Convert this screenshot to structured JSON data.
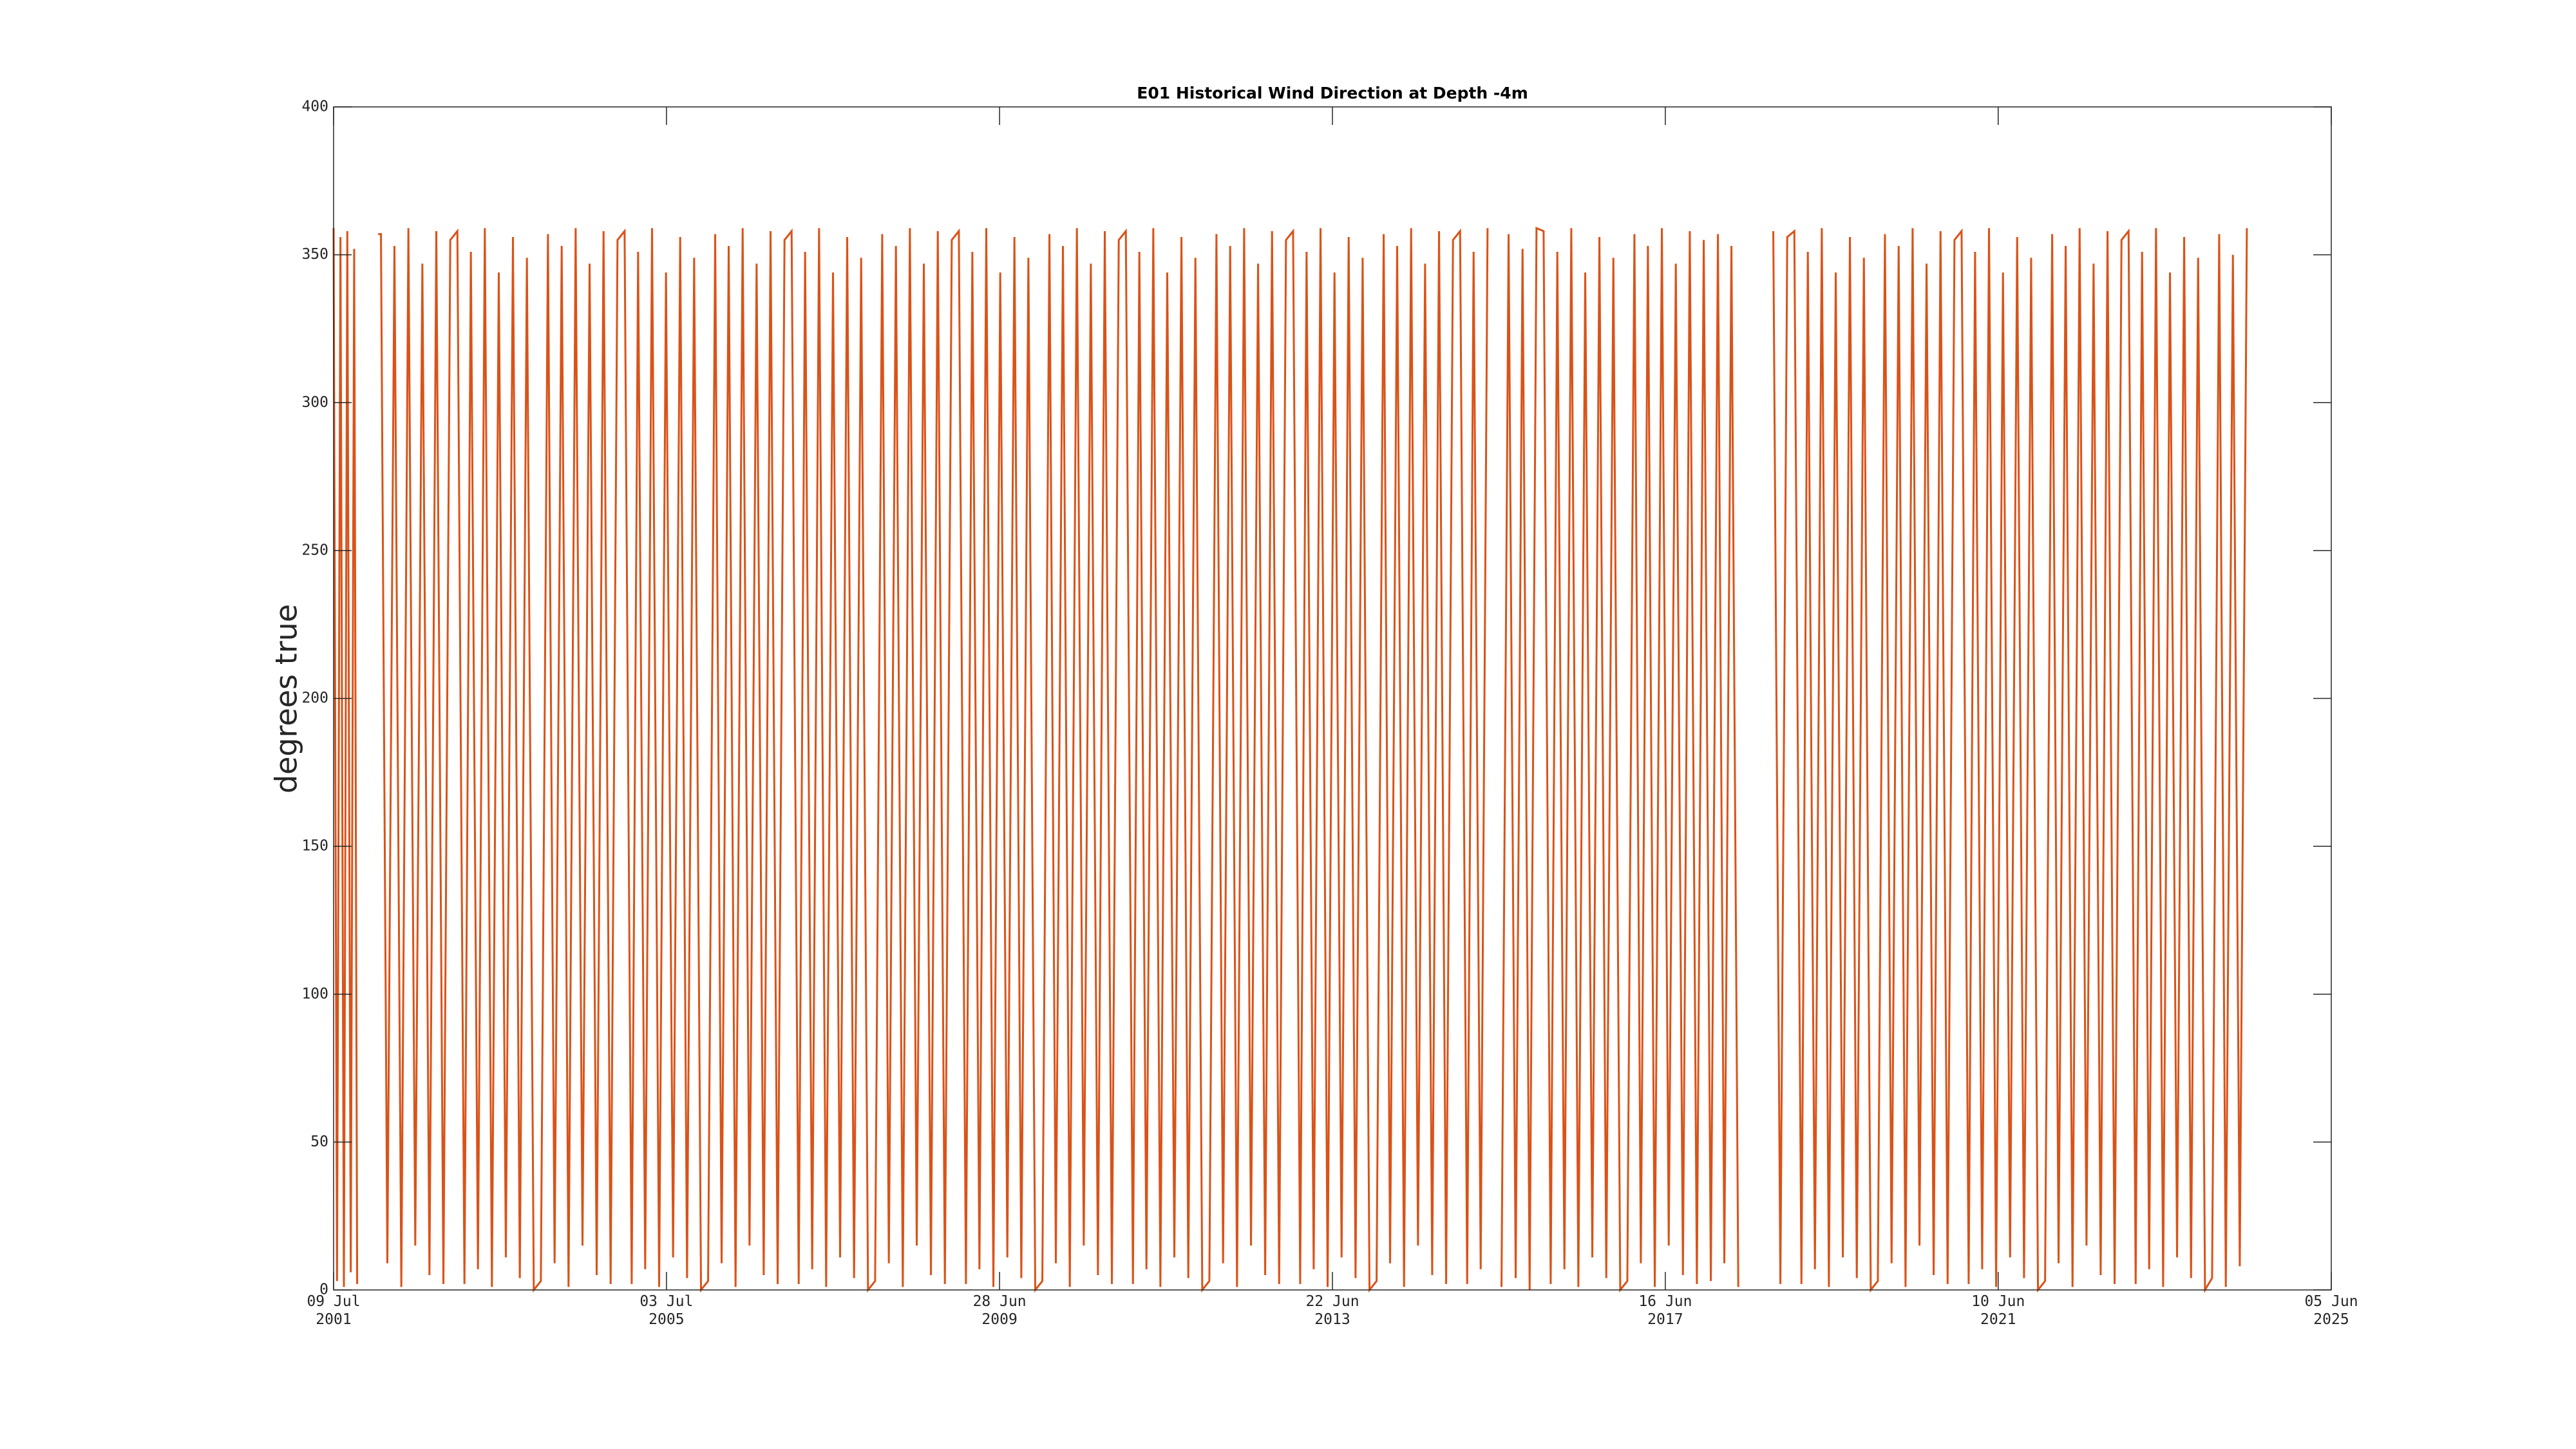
{
  "chart_data": {
    "type": "line",
    "title": "E01 Historical Wind Direction at Depth -4m",
    "y_label": "degrees true",
    "x": [
      "2001-07-09",
      "2001-07-24",
      "2001-08-08",
      "2001-08-23",
      "2001-09-07",
      "2001-09-22",
      "2001-10-07",
      "2001-10-20",
      "2001-12-01",
      "2002-01-20",
      "2002-02-01",
      "2002-03-01",
      "2002-04-01",
      "2002-05-01",
      "2002-06-01",
      "2002-07-01",
      "2002-08-01",
      "2002-09-01",
      "2002-10-01",
      "2002-11-01",
      "2002-12-01",
      "2003-01-01",
      "2003-02-01",
      "2003-03-01",
      "2003-04-01",
      "2003-05-01",
      "2003-06-01",
      "2003-07-01",
      "2003-08-01",
      "2003-09-01",
      "2003-10-01",
      "2003-11-01",
      "2003-12-01",
      "2004-01-01",
      "2004-02-01",
      "2004-03-01",
      "2004-04-01",
      "2004-05-01",
      "2004-06-01",
      "2004-07-01",
      "2004-08-01",
      "2004-09-01",
      "2004-10-01",
      "2004-11-01",
      "2004-12-01",
      "2005-01-01",
      "2005-02-01",
      "2005-03-01",
      "2005-04-01",
      "2005-05-01",
      "2005-06-01",
      "2005-07-01",
      "2005-08-01",
      "2005-09-01",
      "2005-10-01",
      "2005-11-01",
      "2005-12-01",
      "2006-01-01",
      "2006-02-01",
      "2006-03-01",
      "2006-04-01",
      "2006-05-01",
      "2006-06-01",
      "2006-07-01",
      "2006-08-01",
      "2006-09-01",
      "2006-10-01",
      "2006-11-01",
      "2006-12-01",
      "2007-01-01",
      "2007-02-01",
      "2007-03-01",
      "2007-04-01",
      "2007-05-01",
      "2007-06-01",
      "2007-07-01",
      "2007-08-01",
      "2007-09-01",
      "2007-10-01",
      "2007-11-01",
      "2007-12-01",
      "2008-01-01",
      "2008-02-01",
      "2008-03-01",
      "2008-04-01",
      "2008-05-01",
      "2008-06-01",
      "2008-07-01",
      "2008-08-01",
      "2008-09-01",
      "2008-10-01",
      "2008-11-01",
      "2008-12-01",
      "2009-01-01",
      "2009-02-01",
      "2009-03-01",
      "2009-04-01",
      "2009-05-01",
      "2009-06-01",
      "2009-07-01",
      "2009-08-01",
      "2009-09-01",
      "2009-10-01",
      "2009-11-01",
      "2009-12-01",
      "2010-01-01",
      "2010-02-01",
      "2010-03-01",
      "2010-04-01",
      "2010-05-01",
      "2010-06-01",
      "2010-07-01",
      "2010-08-01",
      "2010-09-01",
      "2010-10-01",
      "2010-11-01",
      "2010-12-01",
      "2011-01-01",
      "2011-02-01",
      "2011-03-01",
      "2011-04-01",
      "2011-05-01",
      "2011-06-01",
      "2011-07-01",
      "2011-08-01",
      "2011-09-01",
      "2011-10-01",
      "2011-11-01",
      "2011-12-01",
      "2012-01-01",
      "2012-02-01",
      "2012-03-01",
      "2012-04-01",
      "2012-05-01",
      "2012-06-01",
      "2012-07-01",
      "2012-08-01",
      "2012-09-01",
      "2012-10-01",
      "2012-11-01",
      "2012-12-01",
      "2013-01-01",
      "2013-02-01",
      "2013-03-01",
      "2013-04-01",
      "2013-05-01",
      "2013-06-01",
      "2013-07-01",
      "2013-08-01",
      "2013-09-01",
      "2013-10-01",
      "2013-11-01",
      "2013-12-01",
      "2014-01-01",
      "2014-02-01",
      "2014-03-01",
      "2014-04-01",
      "2014-05-01",
      "2014-06-01",
      "2014-07-01",
      "2014-08-01",
      "2014-09-01",
      "2014-10-01",
      "2014-11-01",
      "2014-12-01",
      "2015-01-01",
      "2015-02-01",
      "2015-03-01",
      "2015-04-01",
      "2015-05-01",
      "2015-06-01",
      "2015-07-01",
      "2015-08-01",
      "2015-09-01",
      "2015-10-01",
      "2015-11-01",
      "2015-12-01",
      "2016-01-01",
      "2016-02-01",
      "2016-03-01",
      "2016-04-01",
      "2016-05-01",
      "2016-06-01",
      "2016-07-01",
      "2016-08-01",
      "2016-09-01",
      "2016-10-01",
      "2016-11-01",
      "2016-12-01",
      "2017-01-01",
      "2017-02-01",
      "2017-03-01",
      "2017-04-01",
      "2017-05-01",
      "2017-06-01",
      "2017-07-01",
      "2017-08-01",
      "2017-09-01",
      "2017-10-01",
      "2017-11-01",
      "2017-12-01",
      "2018-01-01",
      "2018-02-01",
      "2018-03-01",
      "2018-04-01",
      "2018-05-01",
      "2018-07-01",
      "2018-10-01",
      "2018-11-01",
      "2018-12-01",
      "2019-01-01",
      "2019-02-01",
      "2019-03-01",
      "2019-04-01",
      "2019-05-01",
      "2019-06-01",
      "2019-07-01",
      "2019-08-01",
      "2019-09-01",
      "2019-10-01",
      "2019-11-01",
      "2019-12-01",
      "2020-01-01",
      "2020-02-01",
      "2020-03-01",
      "2020-04-01",
      "2020-05-01",
      "2020-06-01",
      "2020-07-01",
      "2020-08-01",
      "2020-09-01",
      "2020-10-01",
      "2020-11-01",
      "2020-12-01",
      "2021-01-01",
      "2021-02-01",
      "2021-03-01",
      "2021-04-01",
      "2021-05-01",
      "2021-06-01",
      "2021-07-01",
      "2021-08-01",
      "2021-09-01",
      "2021-10-01",
      "2021-11-01",
      "2021-12-01",
      "2022-01-01",
      "2022-02-01",
      "2022-03-01",
      "2022-04-01",
      "2022-05-01",
      "2022-06-01",
      "2022-07-01",
      "2022-08-01",
      "2022-09-01",
      "2022-10-01",
      "2022-11-01",
      "2022-12-01",
      "2023-01-01",
      "2023-02-01",
      "2023-03-01",
      "2023-04-01",
      "2023-05-01",
      "2023-06-01",
      "2023-07-01",
      "2023-08-01",
      "2023-09-01",
      "2023-10-01",
      "2023-11-01",
      "2023-12-01",
      "2024-01-01",
      "2024-02-01",
      "2024-03-01",
      "2024-04-01",
      "2024-05-01",
      "2024-06-01"
    ],
    "series": [
      {
        "color": "#d95319",
        "values": [
          359,
          3,
          356,
          1,
          358,
          6,
          352,
          2,
          null,
          357,
          357,
          9,
          353,
          1,
          359,
          15,
          347,
          5,
          358,
          2,
          355,
          358,
          2,
          351,
          7,
          359,
          1,
          344,
          11,
          356,
          4,
          349,
          0,
          3,
          357,
          9,
          353,
          1,
          359,
          15,
          347,
          5,
          358,
          2,
          355,
          358,
          2,
          351,
          7,
          359,
          1,
          344,
          11,
          356,
          4,
          349,
          0,
          3,
          357,
          9,
          353,
          1,
          359,
          15,
          347,
          5,
          358,
          2,
          355,
          358,
          2,
          351,
          7,
          359,
          1,
          344,
          11,
          356,
          4,
          349,
          0,
          3,
          357,
          9,
          353,
          1,
          359,
          15,
          347,
          5,
          358,
          2,
          355,
          358,
          2,
          351,
          7,
          359,
          1,
          344,
          11,
          356,
          4,
          349,
          0,
          3,
          357,
          9,
          353,
          1,
          359,
          15,
          347,
          5,
          358,
          2,
          355,
          358,
          2,
          351,
          7,
          359,
          1,
          344,
          11,
          356,
          4,
          349,
          0,
          3,
          357,
          9,
          353,
          1,
          359,
          15,
          347,
          5,
          358,
          2,
          355,
          358,
          2,
          351,
          7,
          359,
          1,
          344,
          11,
          356,
          4,
          349,
          0,
          3,
          357,
          9,
          353,
          1,
          359,
          15,
          347,
          5,
          358,
          2,
          355,
          358,
          2,
          351,
          7,
          359,
          null,
          1,
          357,
          4,
          352,
          0,
          359,
          358,
          2,
          351,
          7,
          359,
          1,
          344,
          11,
          356,
          4,
          349,
          0,
          3,
          357,
          9,
          353,
          1,
          359,
          15,
          347,
          5,
          358,
          2,
          355,
          3,
          357,
          9,
          353,
          1,
          null,
          358,
          2,
          356,
          358,
          2,
          351,
          7,
          359,
          1,
          344,
          11,
          356,
          4,
          349,
          0,
          3,
          357,
          9,
          353,
          1,
          359,
          15,
          347,
          5,
          358,
          2,
          355,
          358,
          2,
          351,
          7,
          359,
          1,
          344,
          11,
          356,
          4,
          349,
          0,
          3,
          357,
          9,
          353,
          1,
          359,
          15,
          347,
          5,
          358,
          2,
          355,
          358,
          2,
          351,
          7,
          359,
          1,
          344,
          11,
          356,
          4,
          349,
          0,
          4,
          357,
          1,
          350,
          8,
          359
        ]
      }
    ],
    "xlim": [
      "2001-07-09",
      "2025-06-05"
    ],
    "xticks": [
      {
        "value": "2001-07-09",
        "label": "09 Jul 2001"
      },
      {
        "value": "2005-07-03",
        "label": "03 Jul 2005"
      },
      {
        "value": "2009-06-28",
        "label": "28 Jun 2009"
      },
      {
        "value": "2013-06-22",
        "label": "22 Jun 2013"
      },
      {
        "value": "2017-06-16",
        "label": "16 Jun 2017"
      },
      {
        "value": "2021-06-10",
        "label": "10 Jun 2021"
      },
      {
        "value": "2025-06-05",
        "label": "05 Jun 2025"
      }
    ],
    "ylim": [
      0,
      400
    ],
    "yticks": [
      0,
      50,
      100,
      150,
      200,
      250,
      300,
      350,
      400
    ],
    "grid": false
  }
}
